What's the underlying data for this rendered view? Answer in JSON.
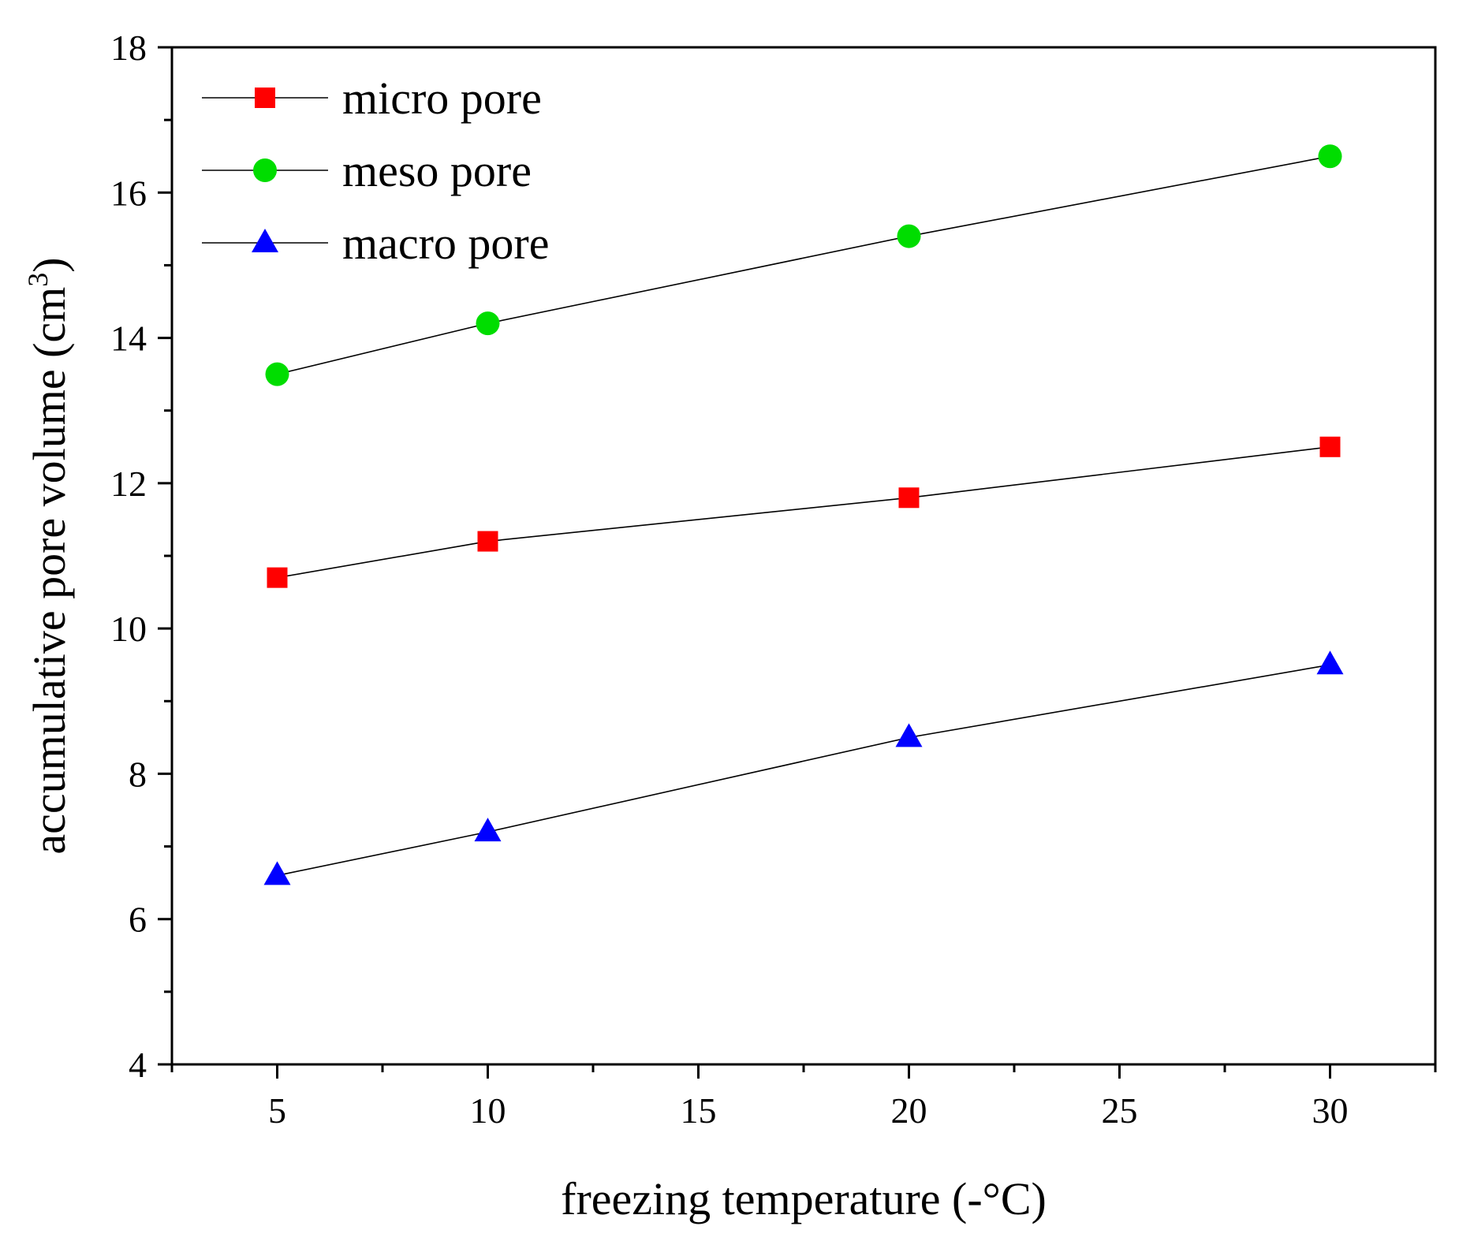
{
  "chart_data": {
    "type": "line",
    "title": "",
    "xlabel": "freezing temperature (-°C)",
    "ylabel": {
      "main": "accumulative pore volume (cm",
      "sup": "3",
      "close": ")"
    },
    "x": [
      5,
      10,
      20,
      30
    ],
    "xlim": [
      2.5,
      32.5
    ],
    "ylim": [
      4,
      18
    ],
    "xticks": [
      5,
      10,
      15,
      20,
      25,
      30
    ],
    "yticks": [
      4,
      6,
      8,
      10,
      12,
      14,
      16,
      18
    ],
    "legend_position": "top-left",
    "series": [
      {
        "name": "micro pore",
        "marker": "square",
        "color": "#ff0000",
        "values": [
          10.7,
          11.2,
          11.8,
          12.5
        ]
      },
      {
        "name": "meso pore",
        "marker": "circle",
        "color": "#00dd00",
        "values": [
          13.5,
          14.2,
          15.4,
          16.5
        ]
      },
      {
        "name": "macro pore",
        "marker": "triangle",
        "color": "#0000ff",
        "values": [
          6.6,
          7.2,
          8.5,
          9.5
        ]
      }
    ],
    "line_color": "#000000"
  }
}
